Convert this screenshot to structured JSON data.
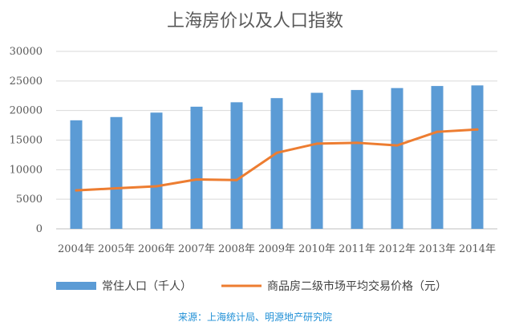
{
  "chart_data": {
    "type": "bar",
    "title": "上海房价以及人口指数",
    "categories": [
      "2004年",
      "2005年",
      "2006年",
      "2007年",
      "2008年",
      "2009年",
      "2010年",
      "2011年",
      "2012年",
      "2013年",
      "2014年"
    ],
    "ylim": [
      0,
      30000
    ],
    "yticks": [
      0,
      5000,
      10000,
      15000,
      20000,
      25000,
      30000
    ],
    "grid": true,
    "legend_position": "bottom",
    "series": [
      {
        "name": "常住人口（千人）",
        "type": "bar",
        "color": "#5b9bd5",
        "values": [
          18350,
          18900,
          19650,
          20650,
          21400,
          22100,
          23000,
          23470,
          23800,
          24150,
          24250
        ]
      },
      {
        "name": "商品房二级市场平均交易价格（元）",
        "type": "line",
        "color": "#ed7d31",
        "values": [
          6500,
          6850,
          7200,
          8350,
          8250,
          12850,
          14400,
          14550,
          14100,
          16400,
          16800
        ]
      }
    ]
  },
  "source_note": "来源：上海统计局、明源地产研究院"
}
